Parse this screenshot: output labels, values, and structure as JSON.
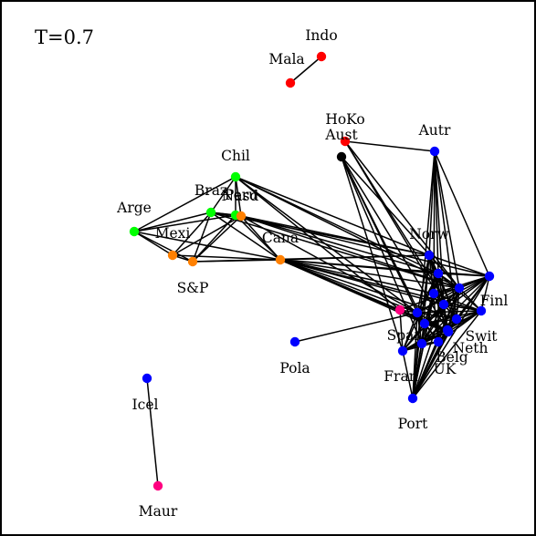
{
  "title": "T=0.7",
  "colors": {
    "red": "#ff0000",
    "blue": "#0000ff",
    "green": "#00ff00",
    "orange": "#ff8000",
    "pink": "#ff0080",
    "black": "#000000"
  },
  "nodes": [
    {
      "id": "Indo",
      "label": "Indo",
      "color": "red"
    },
    {
      "id": "Mala",
      "label": "Mala",
      "color": "red"
    },
    {
      "id": "HoKo",
      "label": "HoKo",
      "color": "red"
    },
    {
      "id": "Aust",
      "label": "Aust",
      "color": "black"
    },
    {
      "id": "Autr",
      "label": "Autr",
      "color": "blue"
    },
    {
      "id": "Chil",
      "label": "Chil",
      "color": "green"
    },
    {
      "id": "Braz",
      "label": "Braz",
      "color": "green"
    },
    {
      "id": "Peru",
      "label": "Peru",
      "color": "green"
    },
    {
      "id": "Nasd",
      "label": "Nasd",
      "color": "orange"
    },
    {
      "id": "Arge",
      "label": "Arge",
      "color": "green"
    },
    {
      "id": "Mexi",
      "label": "Mexi",
      "color": "orange"
    },
    {
      "id": "S&P",
      "label": "S&P",
      "color": "orange"
    },
    {
      "id": "Cana",
      "label": "Cana",
      "color": "orange"
    },
    {
      "id": "Norw",
      "label": "Norw",
      "color": "blue"
    },
    {
      "id": "Finl",
      "label": "Finl",
      "color": "blue"
    },
    {
      "id": "Swit",
      "label": "Swit",
      "color": "blue"
    },
    {
      "id": "Neth",
      "label": "Neth",
      "color": "blue"
    },
    {
      "id": "Belg",
      "label": "Belg",
      "color": "blue"
    },
    {
      "id": "Fran",
      "label": "Fran",
      "color": "blue"
    },
    {
      "id": "UK",
      "label": "UK",
      "color": "blue"
    },
    {
      "id": "Spai",
      "label": "Spai",
      "color": "blue"
    },
    {
      "id": "Port",
      "label": "Port",
      "color": "blue"
    },
    {
      "id": "Pola",
      "label": "Pola",
      "color": "blue"
    },
    {
      "id": "Icel",
      "label": "Icel",
      "color": "blue"
    },
    {
      "id": "Maur",
      "label": "Maur",
      "color": "pink"
    },
    {
      "id": "Isra",
      "label": "",
      "color": "pink"
    },
    {
      "id": "Swed",
      "label": "",
      "color": "blue"
    },
    {
      "id": "Germ",
      "label": "",
      "color": "blue"
    },
    {
      "id": "Irel",
      "label": "",
      "color": "blue"
    },
    {
      "id": "Ital",
      "label": "",
      "color": "blue"
    },
    {
      "id": "Denm",
      "label": "",
      "color": "blue"
    },
    {
      "id": "Luxe",
      "label": "",
      "color": "blue"
    },
    {
      "id": "Gree",
      "label": "",
      "color": "blue"
    }
  ],
  "edges": [
    [
      "Indo",
      "Mala"
    ],
    [
      "Icel",
      "Maur"
    ],
    [
      "Pola",
      "Spai"
    ],
    [
      "HoKo",
      "Autr"
    ],
    [
      "HoKo",
      "Germ"
    ],
    [
      "HoKo",
      "Ital"
    ],
    [
      "HoKo",
      "Irel"
    ],
    [
      "Aust",
      "Germ"
    ],
    [
      "Aust",
      "Fran"
    ],
    [
      "Aust",
      "UK"
    ],
    [
      "Aust",
      "Luxe"
    ],
    [
      "Aust",
      "Gree"
    ],
    [
      "Aust",
      "Spai"
    ],
    [
      "Autr",
      "Norw"
    ],
    [
      "Autr",
      "Germ"
    ],
    [
      "Autr",
      "Ital"
    ],
    [
      "Autr",
      "Irel"
    ],
    [
      "Autr",
      "Denm"
    ],
    [
      "Autr",
      "Swed"
    ],
    [
      "Autr",
      "Finl"
    ],
    [
      "Autr",
      "Port"
    ],
    [
      "Chil",
      "Braz"
    ],
    [
      "Chil",
      "Peru"
    ],
    [
      "Chil",
      "Nasd"
    ],
    [
      "Chil",
      "Arge"
    ],
    [
      "Chil",
      "Norw"
    ],
    [
      "Chil",
      "Swed"
    ],
    [
      "Chil",
      "Germ"
    ],
    [
      "Chil",
      "Spai"
    ],
    [
      "Chil",
      "Isra"
    ],
    [
      "Braz",
      "Peru"
    ],
    [
      "Braz",
      "Nasd"
    ],
    [
      "Braz",
      "Arge"
    ],
    [
      "Braz",
      "Mexi"
    ],
    [
      "Braz",
      "S&P"
    ],
    [
      "Braz",
      "Cana"
    ],
    [
      "Braz",
      "Norw"
    ],
    [
      "Braz",
      "Germ"
    ],
    [
      "Peru",
      "Nasd"
    ],
    [
      "Peru",
      "Arge"
    ],
    [
      "Peru",
      "S&P"
    ],
    [
      "Peru",
      "Cana"
    ],
    [
      "Nasd",
      "Cana"
    ],
    [
      "Nasd",
      "Mexi"
    ],
    [
      "Nasd",
      "S&P"
    ],
    [
      "Nasd",
      "Norw"
    ],
    [
      "Nasd",
      "Finl"
    ],
    [
      "Nasd",
      "Swed"
    ],
    [
      "Nasd",
      "Spai"
    ],
    [
      "Nasd",
      "Germ"
    ],
    [
      "Arge",
      "Mexi"
    ],
    [
      "Arge",
      "S&P"
    ],
    [
      "Arge",
      "Cana"
    ],
    [
      "Mexi",
      "S&P"
    ],
    [
      "Mexi",
      "Cana"
    ],
    [
      "S&P",
      "Cana"
    ],
    [
      "S&P",
      "Norw"
    ],
    [
      "Cana",
      "Norw"
    ],
    [
      "Cana",
      "Finl"
    ],
    [
      "Cana",
      "Swed"
    ],
    [
      "Cana",
      "Germ"
    ],
    [
      "Cana",
      "Irel"
    ],
    [
      "Cana",
      "Ital"
    ],
    [
      "Cana",
      "Spai"
    ],
    [
      "Cana",
      "Swit"
    ],
    [
      "Cana",
      "Neth"
    ],
    [
      "Cana",
      "Isra"
    ],
    [
      "Cana",
      "Denm"
    ],
    [
      "Cana",
      "Luxe"
    ],
    [
      "Cana",
      "Gree"
    ],
    [
      "Norw",
      "Finl"
    ],
    [
      "Norw",
      "Swed"
    ],
    [
      "Norw",
      "Germ"
    ],
    [
      "Norw",
      "Irel"
    ],
    [
      "Norw",
      "Ital"
    ],
    [
      "Norw",
      "Spai"
    ],
    [
      "Norw",
      "Neth"
    ],
    [
      "Norw",
      "Belg"
    ],
    [
      "Norw",
      "UK"
    ],
    [
      "Norw",
      "Port"
    ],
    [
      "Norw",
      "Denm"
    ],
    [
      "Finl",
      "Swed"
    ],
    [
      "Finl",
      "Germ"
    ],
    [
      "Finl",
      "Irel"
    ],
    [
      "Finl",
      "Ital"
    ],
    [
      "Finl",
      "Spai"
    ],
    [
      "Finl",
      "Neth"
    ],
    [
      "Finl",
      "Swit"
    ],
    [
      "Finl",
      "UK"
    ],
    [
      "Finl",
      "Port"
    ],
    [
      "Finl",
      "Isra"
    ],
    [
      "Finl",
      "Denm"
    ],
    [
      "Finl",
      "Luxe"
    ],
    [
      "Finl",
      "Belg"
    ],
    [
      "Swed",
      "Germ"
    ],
    [
      "Swed",
      "Irel"
    ],
    [
      "Swed",
      "Ital"
    ],
    [
      "Swed",
      "Spai"
    ],
    [
      "Swed",
      "Neth"
    ],
    [
      "Swed",
      "Swit"
    ],
    [
      "Swed",
      "Belg"
    ],
    [
      "Swed",
      "Fran"
    ],
    [
      "Swed",
      "UK"
    ],
    [
      "Swed",
      "Port"
    ],
    [
      "Swed",
      "Denm"
    ],
    [
      "Swed",
      "Luxe"
    ],
    [
      "Germ",
      "Irel"
    ],
    [
      "Germ",
      "Ital"
    ],
    [
      "Germ",
      "Spai"
    ],
    [
      "Germ",
      "Neth"
    ],
    [
      "Germ",
      "Swit"
    ],
    [
      "Germ",
      "Belg"
    ],
    [
      "Germ",
      "Fran"
    ],
    [
      "Germ",
      "UK"
    ],
    [
      "Germ",
      "Port"
    ],
    [
      "Germ",
      "Denm"
    ],
    [
      "Germ",
      "Luxe"
    ],
    [
      "Germ",
      "Gree"
    ],
    [
      "Irel",
      "Ital"
    ],
    [
      "Irel",
      "Neth"
    ],
    [
      "Irel",
      "Swit"
    ],
    [
      "Irel",
      "UK"
    ],
    [
      "Irel",
      "Port"
    ],
    [
      "Irel",
      "Denm"
    ],
    [
      "Irel",
      "Luxe"
    ],
    [
      "Ital",
      "Spai"
    ],
    [
      "Ital",
      "Neth"
    ],
    [
      "Ital",
      "Swit"
    ],
    [
      "Ital",
      "Fran"
    ],
    [
      "Ital",
      "UK"
    ],
    [
      "Ital",
      "Port"
    ],
    [
      "Ital",
      "Denm"
    ],
    [
      "Ital",
      "Luxe"
    ],
    [
      "Ital",
      "Gree"
    ],
    [
      "Spai",
      "Neth"
    ],
    [
      "Spai",
      "Swit"
    ],
    [
      "Spai",
      "Belg"
    ],
    [
      "Spai",
      "Fran"
    ],
    [
      "Spai",
      "UK"
    ],
    [
      "Spai",
      "Port"
    ],
    [
      "Spai",
      "Luxe"
    ],
    [
      "Spai",
      "Isra"
    ],
    [
      "Neth",
      "Swit"
    ],
    [
      "Neth",
      "Belg"
    ],
    [
      "Neth",
      "Fran"
    ],
    [
      "Neth",
      "UK"
    ],
    [
      "Neth",
      "Port"
    ],
    [
      "Neth",
      "Denm"
    ],
    [
      "Neth",
      "Luxe"
    ],
    [
      "Neth",
      "Gree"
    ],
    [
      "Swit",
      "Belg"
    ],
    [
      "Swit",
      "Fran"
    ],
    [
      "Swit",
      "UK"
    ],
    [
      "Swit",
      "Port"
    ],
    [
      "Swit",
      "Denm"
    ],
    [
      "Swit",
      "Luxe"
    ],
    [
      "Belg",
      "Fran"
    ],
    [
      "Belg",
      "UK"
    ],
    [
      "Belg",
      "Port"
    ],
    [
      "Belg",
      "Luxe"
    ],
    [
      "Fran",
      "UK"
    ],
    [
      "Fran",
      "Port"
    ],
    [
      "Fran",
      "Luxe"
    ],
    [
      "Fran",
      "Isra"
    ],
    [
      "UK",
      "Port"
    ],
    [
      "UK",
      "Luxe"
    ],
    [
      "Port",
      "Luxe"
    ],
    [
      "Port",
      "Denm"
    ],
    [
      "Port",
      "Gree"
    ],
    [
      "Denm",
      "Luxe"
    ],
    [
      "Denm",
      "Gree"
    ],
    [
      "Luxe",
      "Gree"
    ],
    [
      "Isra",
      "Gree"
    ],
    [
      "Isra",
      "Luxe"
    ]
  ]
}
